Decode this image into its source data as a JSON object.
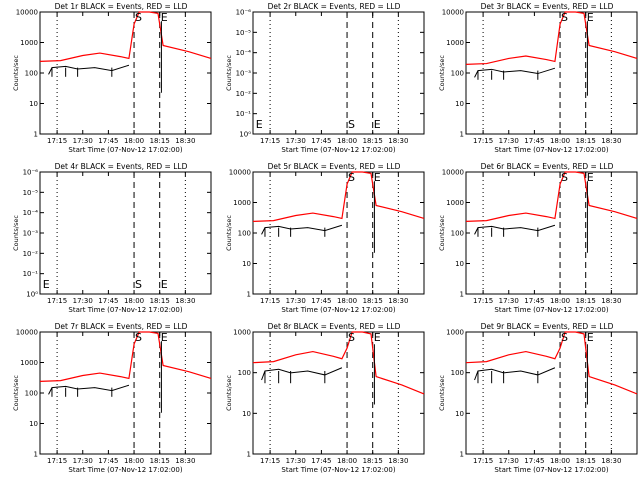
{
  "figure": {
    "colors": {
      "events": "#000000",
      "lld": "#ff0000",
      "axes": "#000000",
      "background": "#ffffff"
    }
  },
  "chart_data": [
    {
      "type": "line",
      "title": "Det 1r BLACK = Events, RED = LLD",
      "xlabel": "Start Time (07-Nov-12 17:02:00)",
      "ylabel": "Counts/sec",
      "ytick_labels": [
        "1",
        "10",
        "100",
        "1000",
        "10000"
      ],
      "xtick_labels": [
        "17:15",
        "17:30",
        "17:45",
        "18:00",
        "18:15",
        "18:30"
      ],
      "markers": [
        "S",
        "E"
      ],
      "has_data": true,
      "lld_peak": 10000,
      "events_level": 150
    },
    {
      "type": "line",
      "title": "Det 2r BLACK = Events, RED = LLD",
      "xlabel": "Start Time (07-Nov-12 17:02:00)",
      "ylabel": "Counts/sec",
      "ytick_labels": [
        "10⁰",
        "10⁻¹",
        "10⁻²",
        "10⁻³",
        "10⁻⁴",
        "10⁻⁵",
        "10⁻⁶"
      ],
      "xtick_labels": [
        "17:15",
        "17:30",
        "17:45",
        "18:00",
        "18:15",
        "18:30"
      ],
      "markers": [
        "E",
        "S",
        "E"
      ],
      "has_data": false
    },
    {
      "type": "line",
      "title": "Det 3r BLACK = Events, RED = LLD",
      "xlabel": "Start Time (07-Nov-12 17:02:00)",
      "ylabel": "Counts/sec",
      "ytick_labels": [
        "1",
        "10",
        "100",
        "1000",
        "10000"
      ],
      "xtick_labels": [
        "17:15",
        "17:30",
        "17:45",
        "18:00",
        "18:15",
        "18:30"
      ],
      "markers": [
        "S",
        "E"
      ],
      "has_data": true,
      "lld_peak": 10000,
      "events_level": 120
    },
    {
      "type": "line",
      "title": "Det 4r BLACK = Events, RED = LLD",
      "xlabel": "Start Time (07-Nov-12 17:02:00)",
      "ylabel": "Counts/sec",
      "ytick_labels": [
        "10⁰",
        "10⁻¹",
        "10⁻²",
        "10⁻³",
        "10⁻⁴",
        "10⁻⁵",
        "10⁻⁶"
      ],
      "xtick_labels": [
        "17:15",
        "17:30",
        "17:45",
        "18:00",
        "18:15",
        "18:30"
      ],
      "markers": [
        "E",
        "S",
        "E"
      ],
      "has_data": false
    },
    {
      "type": "line",
      "title": "Det 5r BLACK = Events, RED = LLD",
      "xlabel": "Start Time (07-Nov-12 17:02:00)",
      "ylabel": "Counts/sec",
      "ytick_labels": [
        "1",
        "10",
        "100",
        "1000",
        "10000"
      ],
      "xtick_labels": [
        "17:15",
        "17:30",
        "17:45",
        "18:00",
        "18:15",
        "18:30"
      ],
      "markers": [
        "S",
        "E"
      ],
      "has_data": true,
      "lld_peak": 10000,
      "events_level": 150
    },
    {
      "type": "line",
      "title": "Det 6r BLACK = Events, RED = LLD",
      "xlabel": "Start Time (07-Nov-12 17:02:00)",
      "ylabel": "Counts/sec",
      "ytick_labels": [
        "1",
        "10",
        "100",
        "1000",
        "10000"
      ],
      "xtick_labels": [
        "17:15",
        "17:30",
        "17:45",
        "18:00",
        "18:15",
        "18:30"
      ],
      "markers": [
        "S",
        "E"
      ],
      "has_data": true,
      "lld_peak": 10000,
      "events_level": 150
    },
    {
      "type": "line",
      "title": "Det 7r BLACK = Events, RED = LLD",
      "xlabel": "Start Time (07-Nov-12 17:02:00)",
      "ylabel": "Counts/sec",
      "ytick_labels": [
        "1",
        "10",
        "100",
        "1000",
        "10000"
      ],
      "xtick_labels": [
        "17:15",
        "17:30",
        "17:45",
        "18:00",
        "18:15",
        "18:30"
      ],
      "markers": [
        "S",
        "E"
      ],
      "has_data": true,
      "lld_peak": 10000,
      "events_level": 150
    },
    {
      "type": "line",
      "title": "Det 8r BLACK = Events, RED = LLD",
      "xlabel": "Start Time (07-Nov-12 17:02:00)",
      "ylabel": "Counts/sec",
      "ytick_labels": [
        "1",
        "10",
        "100",
        "1000"
      ],
      "xtick_labels": [
        "17:15",
        "17:30",
        "17:45",
        "18:00",
        "18:15",
        "18:30"
      ],
      "markers": [
        "S",
        "E"
      ],
      "has_data": true,
      "lld_peak": 1000,
      "events_level": 110
    },
    {
      "type": "line",
      "title": "Det 9r BLACK = Events, RED = LLD",
      "xlabel": "Start Time (07-Nov-12 17:02:00)",
      "ylabel": "Counts/sec",
      "ytick_labels": [
        "1",
        "10",
        "100",
        "1000"
      ],
      "xtick_labels": [
        "17:15",
        "17:30",
        "17:45",
        "18:00",
        "18:15",
        "18:30"
      ],
      "markers": [
        "S",
        "E"
      ],
      "has_data": true,
      "lld_peak": 1000,
      "events_level": 110
    }
  ]
}
